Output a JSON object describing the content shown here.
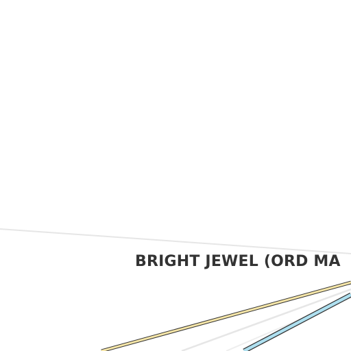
{
  "map": {
    "background_color": "#ffffff",
    "road_label": "BRIGHT JEWEL (ORD MA",
    "colors": {
      "minor_road": "#e6e6e6",
      "secondary_road_fill": "#f6e6a8",
      "major_road_fill": "#aee0f0",
      "road_casing": "#333333",
      "label_text": "#333333"
    }
  }
}
